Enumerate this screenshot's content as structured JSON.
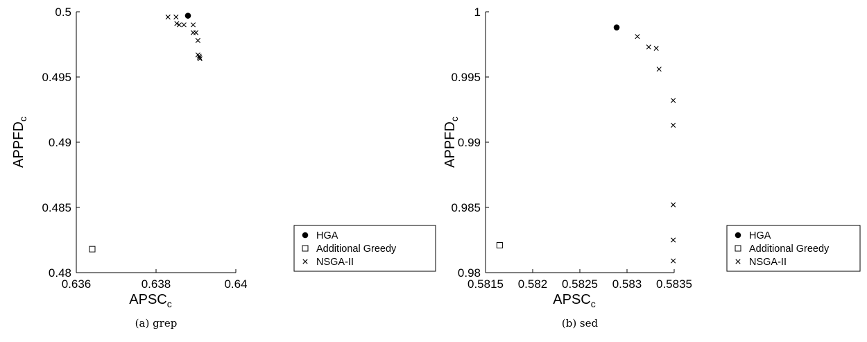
{
  "chart_data": [
    {
      "type": "scatter",
      "caption": "(a) grep",
      "xlabel": "APSC",
      "xlabel_sub": "c",
      "ylabel": "APPFD",
      "ylabel_sub": "c",
      "xlim": [
        0.636,
        0.64
      ],
      "ylim": [
        0.48,
        0.5
      ],
      "xticks": [
        "0.636",
        "0.638",
        "0.64"
      ],
      "xtick_values": [
        0.636,
        0.638,
        0.64
      ],
      "yticks": [
        "0.48",
        "0.485",
        "0.49",
        "0.495",
        "0.5"
      ],
      "ytick_values": [
        0.48,
        0.485,
        0.49,
        0.495,
        0.5
      ],
      "legend_position": "right",
      "series": [
        {
          "name": "HGA",
          "marker": "filled-circle",
          "points": [
            [
              0.6388,
              0.4997
            ]
          ]
        },
        {
          "name": "Additional Greedy",
          "marker": "open-square",
          "points": [
            [
              0.6364,
              0.4818
            ]
          ]
        },
        {
          "name": "NSGA-II",
          "marker": "x",
          "points": [
            [
              0.6383,
              0.4996
            ],
            [
              0.6385,
              0.4996
            ],
            [
              0.63852,
              0.4991
            ],
            [
              0.63858,
              0.499
            ],
            [
              0.6387,
              0.499
            ],
            [
              0.63893,
              0.499
            ],
            [
              0.63893,
              0.4984
            ],
            [
              0.639,
              0.4984
            ],
            [
              0.63905,
              0.4978
            ],
            [
              0.63905,
              0.4967
            ],
            [
              0.63908,
              0.4966
            ],
            [
              0.63909,
              0.4965
            ],
            [
              0.6391,
              0.4964
            ]
          ]
        }
      ]
    },
    {
      "type": "scatter",
      "caption": "(b) sed",
      "xlabel": "APSC",
      "xlabel_sub": "c",
      "ylabel": "APPFD",
      "ylabel_sub": "c",
      "xlim": [
        0.5815,
        0.5835
      ],
      "ylim": [
        0.98,
        1.0
      ],
      "xticks": [
        "0.5815",
        "0.582",
        "0.5825",
        "0.583",
        "0.5835"
      ],
      "xtick_values": [
        0.5815,
        0.582,
        0.5825,
        0.583,
        0.5835
      ],
      "yticks": [
        "0.98",
        "0.985",
        "0.99",
        "0.995",
        "1"
      ],
      "ytick_values": [
        0.98,
        0.985,
        0.99,
        0.995,
        1.0
      ],
      "legend_position": "right",
      "series": [
        {
          "name": "HGA",
          "marker": "filled-circle",
          "points": [
            [
              0.58289,
              0.9988
            ]
          ]
        },
        {
          "name": "Additional Greedy",
          "marker": "open-square",
          "points": [
            [
              0.58165,
              0.9821
            ]
          ]
        },
        {
          "name": "NSGA-II",
          "marker": "x",
          "points": [
            [
              0.58311,
              0.9981
            ],
            [
              0.58323,
              0.9973
            ],
            [
              0.58331,
              0.9972
            ],
            [
              0.58334,
              0.9956
            ],
            [
              0.58349,
              0.9932
            ],
            [
              0.58349,
              0.9913
            ],
            [
              0.58349,
              0.9852
            ],
            [
              0.58349,
              0.9825
            ],
            [
              0.58349,
              0.9809
            ]
          ]
        }
      ]
    }
  ]
}
